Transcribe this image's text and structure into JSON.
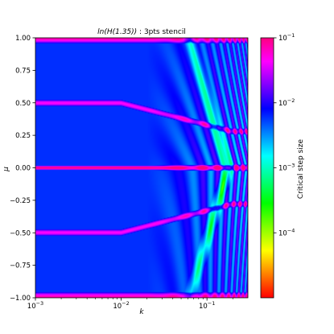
{
  "chart_data": {
    "type": "heatmap",
    "title": "ln(H(1.35)) : 3pts stencil",
    "title_italic_part": "ln(H(1.35))",
    "title_rest": " : 3pts stencil",
    "xlabel": "k",
    "ylabel": "μ",
    "xscale": "log",
    "xlim": [
      0.001,
      0.3
    ],
    "xticks": [
      {
        "value": 0.001,
        "base": "10",
        "exp": "−3"
      },
      {
        "value": 0.01,
        "base": "10",
        "exp": "−2"
      },
      {
        "value": 0.1,
        "base": "10",
        "exp": "−1"
      }
    ],
    "ylim": [
      -1.0,
      1.0
    ],
    "yticks": [
      "1.00",
      "0.75",
      "0.50",
      "0.25",
      "0.00",
      "−0.25",
      "−0.50",
      "−0.75",
      "−1.00"
    ],
    "ytick_values": [
      1.0,
      0.75,
      0.5,
      0.25,
      0.0,
      -0.25,
      -0.5,
      -0.75,
      -1.0
    ],
    "colorbar": {
      "label": "Critical step size",
      "scale": "log",
      "range": [
        1e-05,
        0.1
      ],
      "ticks": [
        {
          "value": 0.1,
          "base": "10",
          "exp": "−1"
        },
        {
          "value": 0.01,
          "base": "10",
          "exp": "−2"
        },
        {
          "value": 0.001,
          "base": "10",
          "exp": "−3"
        },
        {
          "value": 0.0001,
          "base": "10",
          "exp": "−4"
        }
      ],
      "colormap": [
        "#ff0000",
        "#ff8000",
        "#ffff00",
        "#80ff00",
        "#00ff00",
        "#00ff80",
        "#00ffff",
        "#0080ff",
        "#0000ff",
        "#8000ff",
        "#ff00ff",
        "#ff0080"
      ]
    },
    "features": {
      "central_band_mu": 0.0,
      "side_bands_mu_at_small_k": [
        0.5,
        -0.5
      ],
      "background_level": 0.006,
      "band_level": 0.1
    }
  }
}
